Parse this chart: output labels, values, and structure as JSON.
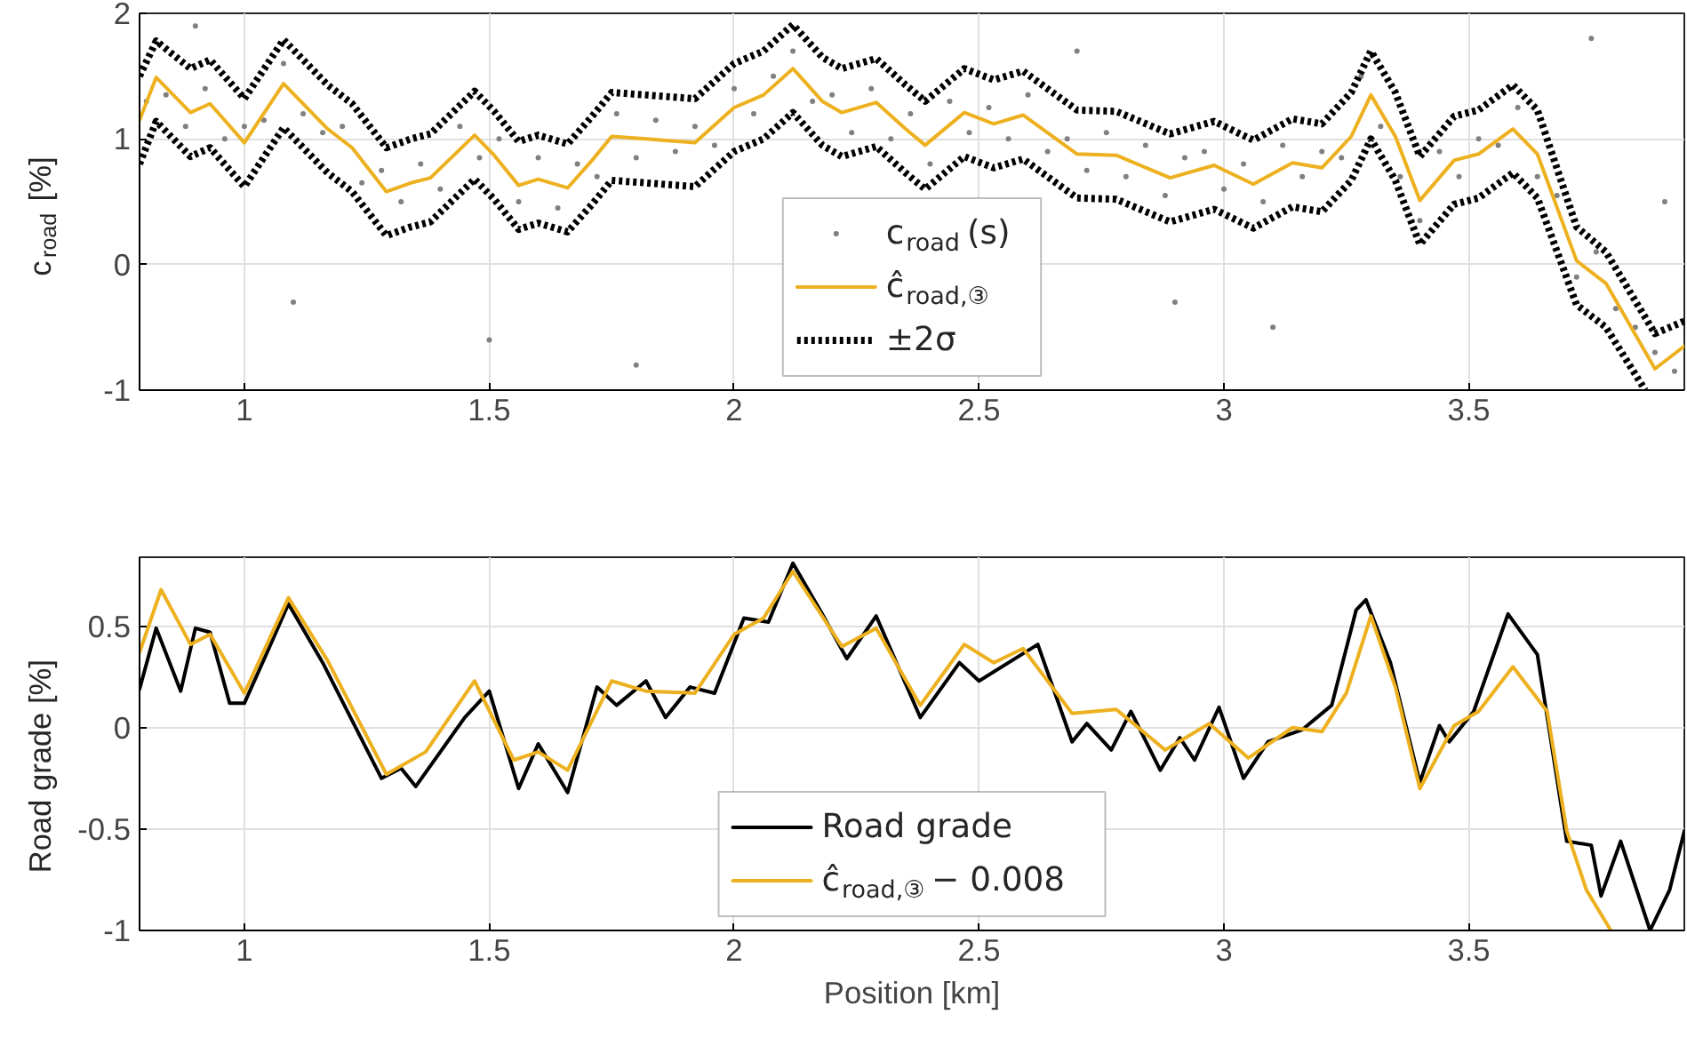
{
  "chart_data": [
    {
      "type": "line",
      "ylabel": "c$_{road}$ [%]",
      "xlim": [
        0.786,
        3.94
      ],
      "xticks": [
        1,
        1.5,
        2,
        2.5,
        3,
        3.5
      ],
      "ylim": [
        -1,
        2
      ],
      "yticks": [
        -1,
        0,
        1,
        2
      ],
      "grid": true,
      "legend": "bottom",
      "series": [
        {
          "name": "c$_{road}$(s)",
          "type": "scatter",
          "marker": "circle",
          "color": "#808080",
          "x": [
            0.8,
            0.84,
            0.88,
            0.92,
            0.96,
            1.0,
            1.04,
            1.08,
            1.12,
            1.16,
            1.2,
            1.24,
            1.28,
            1.32,
            1.36,
            1.4,
            1.44,
            1.48,
            1.52,
            1.56,
            1.6,
            1.64,
            1.68,
            1.72,
            1.76,
            1.8,
            1.84,
            1.88,
            1.92,
            1.96,
            2.0,
            2.04,
            2.08,
            2.12,
            2.16,
            2.2,
            2.24,
            2.28,
            2.32,
            2.36,
            2.4,
            2.44,
            2.48,
            2.52,
            2.56,
            2.6,
            2.64,
            2.68,
            2.72,
            2.76,
            2.8,
            2.84,
            2.88,
            2.92,
            2.96,
            3.0,
            3.04,
            3.08,
            3.12,
            3.16,
            3.2,
            3.24,
            3.28,
            3.32,
            3.36,
            3.4,
            3.44,
            3.48,
            3.52,
            3.56,
            3.6,
            3.64,
            3.68,
            3.72,
            3.76,
            3.8,
            3.84,
            3.88,
            3.92,
            1.1,
            1.5,
            2.9,
            3.1,
            3.75,
            0.9,
            2.7,
            1.8,
            3.9
          ],
          "values": [
            1.3,
            1.35,
            1.1,
            1.4,
            1.0,
            1.1,
            1.15,
            1.6,
            1.2,
            1.05,
            1.1,
            0.65,
            0.75,
            0.5,
            0.8,
            0.6,
            1.1,
            0.85,
            1.0,
            0.5,
            0.85,
            0.45,
            0.8,
            0.7,
            1.2,
            0.85,
            1.15,
            0.9,
            1.1,
            0.95,
            1.4,
            1.2,
            1.5,
            1.7,
            1.3,
            1.35,
            1.05,
            1.4,
            1.0,
            1.2,
            0.8,
            1.3,
            1.05,
            1.25,
            1.0,
            1.35,
            0.9,
            1.0,
            0.75,
            1.05,
            0.7,
            0.95,
            0.55,
            0.85,
            0.9,
            0.6,
            0.8,
            0.5,
            0.95,
            0.7,
            0.9,
            0.85,
            1.5,
            1.1,
            0.7,
            0.35,
            0.9,
            0.7,
            1.0,
            0.95,
            1.25,
            0.7,
            0.55,
            -0.1,
            0.1,
            -0.35,
            -0.5,
            -0.7,
            -0.85,
            -0.3,
            -0.6,
            -0.3,
            -0.5,
            1.8,
            1.9,
            1.7,
            -0.8,
            0.5
          ]
        },
        {
          "name": "ĉ$_{road,③}$",
          "color": "#edb120",
          "x": [
            0.786,
            0.82,
            0.89,
            0.93,
            1.0,
            1.08,
            1.17,
            1.22,
            1.29,
            1.34,
            1.38,
            1.47,
            1.51,
            1.56,
            1.6,
            1.66,
            1.71,
            1.75,
            1.82,
            1.92,
            2.0,
            2.06,
            2.12,
            2.18,
            2.22,
            2.29,
            2.35,
            2.39,
            2.47,
            2.53,
            2.59,
            2.7,
            2.78,
            2.89,
            2.98,
            3.06,
            3.14,
            3.2,
            3.26,
            3.3,
            3.35,
            3.4,
            3.47,
            3.52,
            3.59,
            3.64,
            3.72,
            3.78,
            3.88,
            3.94
          ],
          "values": [
            1.15,
            1.49,
            1.21,
            1.28,
            0.97,
            1.44,
            1.08,
            0.93,
            0.58,
            0.65,
            0.69,
            1.03,
            0.87,
            0.63,
            0.68,
            0.61,
            0.83,
            1.02,
            1.0,
            0.97,
            1.25,
            1.35,
            1.56,
            1.3,
            1.21,
            1.29,
            1.08,
            0.95,
            1.21,
            1.12,
            1.19,
            0.88,
            0.87,
            0.69,
            0.79,
            0.64,
            0.81,
            0.77,
            1.02,
            1.35,
            1.02,
            0.51,
            0.83,
            0.88,
            1.08,
            0.88,
            0.03,
            -0.15,
            -0.83,
            -0.65
          ]
        },
        {
          "name": "±2σ",
          "color": "#000000",
          "line_style": "dotted",
          "x": [
            0.786,
            0.82,
            0.89,
            0.93,
            1.0,
            1.08,
            1.17,
            1.22,
            1.29,
            1.34,
            1.38,
            1.47,
            1.51,
            1.56,
            1.6,
            1.66,
            1.71,
            1.75,
            1.82,
            1.92,
            2.0,
            2.06,
            2.12,
            2.18,
            2.22,
            2.29,
            2.35,
            2.39,
            2.47,
            2.53,
            2.59,
            2.7,
            2.78,
            2.89,
            2.98,
            3.06,
            3.14,
            3.2,
            3.26,
            3.3,
            3.35,
            3.4,
            3.47,
            3.52,
            3.59,
            3.64,
            3.72,
            3.78,
            3.88,
            3.94
          ],
          "values": [
            1.5,
            1.78,
            1.56,
            1.63,
            1.32,
            1.79,
            1.43,
            1.28,
            0.93,
            1.0,
            1.04,
            1.38,
            1.22,
            0.98,
            1.03,
            0.96,
            1.18,
            1.37,
            1.35,
            1.32,
            1.6,
            1.7,
            1.91,
            1.65,
            1.56,
            1.64,
            1.43,
            1.3,
            1.56,
            1.47,
            1.54,
            1.23,
            1.22,
            1.04,
            1.14,
            0.99,
            1.16,
            1.12,
            1.37,
            1.7,
            1.37,
            0.86,
            1.18,
            1.23,
            1.43,
            1.23,
            0.3,
            0.1,
            -0.55,
            -0.45
          ]
        },
        {
          "color": "#000000",
          "line_style": "dotted",
          "x": [
            0.786,
            0.82,
            0.89,
            0.93,
            1.0,
            1.08,
            1.17,
            1.22,
            1.29,
            1.34,
            1.38,
            1.47,
            1.51,
            1.56,
            1.6,
            1.66,
            1.71,
            1.75,
            1.82,
            1.92,
            2.0,
            2.06,
            2.12,
            2.18,
            2.22,
            2.29,
            2.35,
            2.39,
            2.47,
            2.53,
            2.59,
            2.7,
            2.78,
            2.89,
            2.98,
            3.06,
            3.14,
            3.2,
            3.26,
            3.3,
            3.35,
            3.4,
            3.47,
            3.52,
            3.59,
            3.64,
            3.72,
            3.78,
            3.86
          ],
          "values": [
            0.8,
            1.14,
            0.86,
            0.93,
            0.62,
            1.09,
            0.73,
            0.58,
            0.23,
            0.3,
            0.34,
            0.68,
            0.52,
            0.28,
            0.33,
            0.26,
            0.48,
            0.67,
            0.65,
            0.62,
            0.9,
            1.0,
            1.21,
            0.95,
            0.86,
            0.94,
            0.73,
            0.6,
            0.86,
            0.77,
            0.84,
            0.53,
            0.52,
            0.34,
            0.44,
            0.29,
            0.46,
            0.42,
            0.67,
            1.0,
            0.67,
            0.16,
            0.48,
            0.53,
            0.73,
            0.53,
            -0.32,
            -0.5,
            -1.0
          ]
        }
      ]
    },
    {
      "type": "line",
      "xlabel": "Position [km]",
      "ylabel": "Road grade [%]",
      "xlim": [
        0.786,
        3.94
      ],
      "xticks": [
        1,
        1.5,
        2,
        2.5,
        3,
        3.5
      ],
      "ylim": [
        -1,
        0.84
      ],
      "yticks": [
        -1,
        -0.5,
        0,
        0.5
      ],
      "grid": true,
      "legend": "bottom",
      "series": [
        {
          "name": "Road grade",
          "color": "#000000",
          "x": [
            0.786,
            0.82,
            0.87,
            0.9,
            0.93,
            0.97,
            1.0,
            1.05,
            1.09,
            1.16,
            1.28,
            1.32,
            1.35,
            1.45,
            1.5,
            1.56,
            1.6,
            1.66,
            1.72,
            1.76,
            1.82,
            1.86,
            1.91,
            1.96,
            2.02,
            2.07,
            2.12,
            2.18,
            2.23,
            2.29,
            2.38,
            2.46,
            2.5,
            2.62,
            2.69,
            2.72,
            2.77,
            2.81,
            2.87,
            2.91,
            2.94,
            2.99,
            3.04,
            3.09,
            3.16,
            3.22,
            3.27,
            3.29,
            3.34,
            3.4,
            3.44,
            3.46,
            3.51,
            3.58,
            3.64,
            3.7,
            3.75,
            3.77,
            3.81,
            3.87,
            3.91,
            3.94
          ],
          "values": [
            0.19,
            0.49,
            0.18,
            0.49,
            0.47,
            0.12,
            0.12,
            0.39,
            0.61,
            0.32,
            -0.25,
            -0.2,
            -0.29,
            0.05,
            0.18,
            -0.3,
            -0.08,
            -0.32,
            0.2,
            0.11,
            0.23,
            0.05,
            0.2,
            0.17,
            0.54,
            0.52,
            0.81,
            0.56,
            0.34,
            0.55,
            0.05,
            0.32,
            0.23,
            0.41,
            -0.07,
            0.02,
            -0.11,
            0.08,
            -0.21,
            -0.05,
            -0.16,
            0.1,
            -0.25,
            -0.07,
            -0.01,
            0.11,
            0.58,
            0.63,
            0.32,
            -0.27,
            0.01,
            -0.07,
            0.08,
            0.56,
            0.36,
            -0.56,
            -0.58,
            -0.83,
            -0.56,
            -1.0,
            -0.8,
            -0.51
          ]
        },
        {
          "name": "ĉ$_{road,③}$ − 0.008",
          "color": "#edb120",
          "x": [
            0.786,
            0.83,
            0.89,
            0.93,
            1.0,
            1.09,
            1.17,
            1.29,
            1.37,
            1.47,
            1.55,
            1.6,
            1.66,
            1.75,
            1.82,
            1.92,
            2.0,
            2.06,
            2.12,
            2.22,
            2.29,
            2.38,
            2.47,
            2.53,
            2.59,
            2.69,
            2.78,
            2.88,
            2.97,
            3.05,
            3.14,
            3.2,
            3.25,
            3.3,
            3.35,
            3.4,
            3.47,
            3.52,
            3.59,
            3.66,
            3.7,
            3.74,
            3.79
          ],
          "values": [
            0.37,
            0.68,
            0.41,
            0.46,
            0.17,
            0.64,
            0.33,
            -0.23,
            -0.12,
            0.23,
            -0.16,
            -0.12,
            -0.21,
            0.23,
            0.18,
            0.17,
            0.46,
            0.54,
            0.77,
            0.4,
            0.49,
            0.11,
            0.41,
            0.32,
            0.39,
            0.07,
            0.09,
            -0.11,
            0.02,
            -0.15,
            0.0,
            -0.02,
            0.17,
            0.55,
            0.2,
            -0.3,
            0.01,
            0.08,
            0.3,
            0.08,
            -0.51,
            -0.8,
            -1.0
          ]
        }
      ]
    }
  ]
}
